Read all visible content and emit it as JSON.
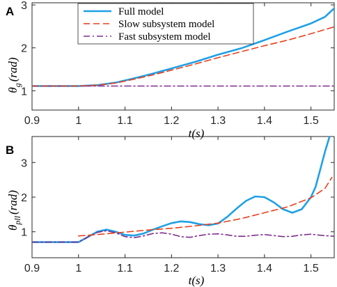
{
  "colors": {
    "full": "#1fa0e6",
    "slow": "#e8401c",
    "fast": "#7e2f8e",
    "axis": "#262626"
  },
  "legend": {
    "entries": [
      {
        "label": "Full model",
        "series": "full",
        "style": "solid"
      },
      {
        "label": "Slow subsystem model",
        "series": "slow",
        "style": "dashed"
      },
      {
        "label": "Fast subsystem model",
        "series": "fast",
        "style": "dashdot"
      }
    ]
  },
  "chart_data": [
    {
      "panel_label": "A",
      "type": "line",
      "title": "",
      "xlabel_main": "t",
      "xlabel_unit": "(s)",
      "ylabel_sym": "θ",
      "ylabel_sub": "g",
      "ylabel_unit": "(rad)",
      "xlim": [
        0.9,
        1.55
      ],
      "ylim": [
        0.55,
        3.05
      ],
      "xticks": [
        0.9,
        1.0,
        1.1,
        1.2,
        1.3,
        1.4,
        1.5
      ],
      "xticklabels": [
        "0.9",
        "1",
        "1.1",
        "1.2",
        "1.3",
        "1.4",
        "1.5"
      ],
      "yticks": [
        1,
        2,
        3
      ],
      "yticklabels": [
        "1",
        "2",
        "3"
      ],
      "grid": false,
      "legend_position": "top-center",
      "series": [
        {
          "name": "Full model",
          "key": "full",
          "style": "solid",
          "x": [
            0.9,
            1.0,
            1.04,
            1.08,
            1.12,
            1.16,
            1.2,
            1.25,
            1.3,
            1.35,
            1.4,
            1.45,
            1.5,
            1.53,
            1.55
          ],
          "y": [
            1.11,
            1.11,
            1.13,
            1.19,
            1.29,
            1.4,
            1.52,
            1.67,
            1.84,
            1.99,
            2.18,
            2.38,
            2.57,
            2.72,
            2.92
          ]
        },
        {
          "name": "Slow subsystem model",
          "key": "slow",
          "style": "dashed",
          "x": [
            0.9,
            1.0,
            1.04,
            1.08,
            1.12,
            1.16,
            1.2,
            1.25,
            1.3,
            1.35,
            1.4,
            1.45,
            1.5,
            1.55
          ],
          "y": [
            1.11,
            1.11,
            1.13,
            1.18,
            1.27,
            1.37,
            1.48,
            1.62,
            1.77,
            1.91,
            2.05,
            2.18,
            2.33,
            2.49
          ]
        },
        {
          "name": "Fast subsystem model",
          "key": "fast",
          "style": "dashdot",
          "x": [
            0.9,
            1.55
          ],
          "y": [
            1.11,
            1.11
          ]
        }
      ]
    },
    {
      "panel_label": "B",
      "type": "line",
      "title": "",
      "xlabel_main": "t",
      "xlabel_unit": "(s)",
      "ylabel_sym": "θ",
      "ylabel_sub": "pll",
      "ylabel_unit": "(rad)",
      "xlim": [
        0.9,
        1.55
      ],
      "ylim": [
        0.25,
        3.75
      ],
      "xticks": [
        0.9,
        1.0,
        1.1,
        1.2,
        1.3,
        1.4,
        1.5
      ],
      "xticklabels": [
        "0.9",
        "1",
        "1.1",
        "1.2",
        "1.3",
        "1.4",
        "1.5"
      ],
      "yticks": [
        1,
        2,
        3
      ],
      "yticklabels": [
        "1",
        "2",
        "3"
      ],
      "grid": false,
      "series": [
        {
          "name": "Full model",
          "key": "full",
          "style": "solid",
          "x": [
            0.9,
            1.0,
            1.02,
            1.04,
            1.06,
            1.08,
            1.1,
            1.12,
            1.14,
            1.16,
            1.18,
            1.2,
            1.22,
            1.24,
            1.26,
            1.28,
            1.3,
            1.32,
            1.34,
            1.36,
            1.38,
            1.4,
            1.42,
            1.44,
            1.46,
            1.48,
            1.5,
            1.51,
            1.52,
            1.53,
            1.54
          ],
          "y": [
            0.7,
            0.7,
            0.85,
            1.0,
            1.06,
            1.0,
            0.91,
            0.89,
            0.95,
            1.06,
            1.16,
            1.25,
            1.3,
            1.28,
            1.22,
            1.19,
            1.24,
            1.43,
            1.67,
            1.89,
            2.02,
            2.0,
            1.85,
            1.65,
            1.55,
            1.65,
            2.0,
            2.3,
            2.8,
            3.3,
            3.75
          ]
        },
        {
          "name": "Slow subsystem model",
          "key": "slow",
          "style": "dashed",
          "x": [
            1.0,
            1.05,
            1.1,
            1.15,
            1.2,
            1.25,
            1.3,
            1.35,
            1.4,
            1.45,
            1.5,
            1.53,
            1.545
          ],
          "y": [
            0.88,
            0.93,
            0.99,
            1.05,
            1.1,
            1.17,
            1.25,
            1.38,
            1.55,
            1.72,
            1.98,
            2.25,
            2.57
          ]
        },
        {
          "name": "Fast subsystem model",
          "key": "fast",
          "style": "dashdot",
          "x": [
            0.9,
            1.0,
            1.02,
            1.04,
            1.06,
            1.08,
            1.1,
            1.12,
            1.14,
            1.16,
            1.18,
            1.2,
            1.22,
            1.24,
            1.26,
            1.28,
            1.3,
            1.32,
            1.34,
            1.36,
            1.38,
            1.4,
            1.42,
            1.44,
            1.46,
            1.48,
            1.5,
            1.52,
            1.55
          ],
          "y": [
            0.7,
            0.7,
            0.85,
            0.98,
            1.03,
            0.97,
            0.86,
            0.83,
            0.88,
            0.95,
            0.97,
            0.93,
            0.86,
            0.84,
            0.89,
            0.93,
            0.94,
            0.91,
            0.87,
            0.87,
            0.9,
            0.92,
            0.89,
            0.86,
            0.87,
            0.91,
            0.93,
            0.9,
            0.87
          ]
        }
      ]
    }
  ]
}
